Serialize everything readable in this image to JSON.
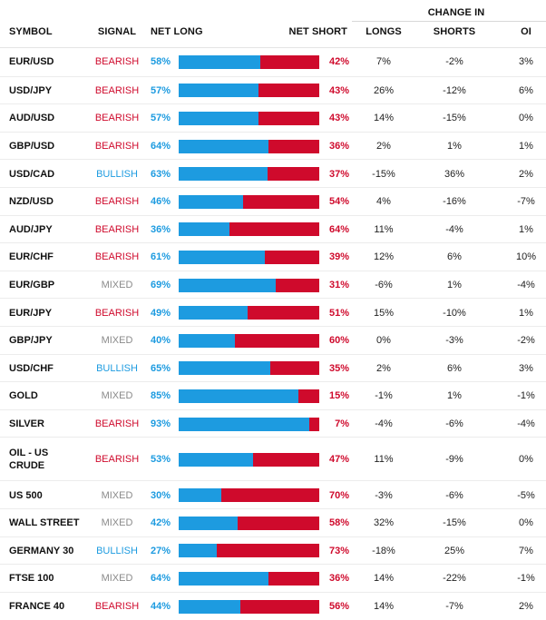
{
  "header": {
    "symbol": "SYMBOL",
    "signal": "SIGNAL",
    "net_long": "NET LONG",
    "net_short": "NET SHORT",
    "change_in": "CHANGE IN",
    "longs": "LONGS",
    "shorts": "SHORTS",
    "oi": "OI"
  },
  "colors": {
    "long": "#1d9be0",
    "short": "#cf0a2c",
    "mixed": "#8a8a8a"
  },
  "rows": [
    {
      "symbol": "EUR/USD",
      "signal": "BEARISH",
      "long": 58,
      "short": 42,
      "longs": "7%",
      "shorts": "-2%",
      "oi": "3%"
    },
    {
      "symbol": "USD/JPY",
      "signal": "BEARISH",
      "long": 57,
      "short": 43,
      "longs": "26%",
      "shorts": "-12%",
      "oi": "6%"
    },
    {
      "symbol": "AUD/USD",
      "signal": "BEARISH",
      "long": 57,
      "short": 43,
      "longs": "14%",
      "shorts": "-15%",
      "oi": "0%"
    },
    {
      "symbol": "GBP/USD",
      "signal": "BEARISH",
      "long": 64,
      "short": 36,
      "longs": "2%",
      "shorts": "1%",
      "oi": "1%"
    },
    {
      "symbol": "USD/CAD",
      "signal": "BULLISH",
      "long": 63,
      "short": 37,
      "longs": "-15%",
      "shorts": "36%",
      "oi": "2%"
    },
    {
      "symbol": "NZD/USD",
      "signal": "BEARISH",
      "long": 46,
      "short": 54,
      "longs": "4%",
      "shorts": "-16%",
      "oi": "-7%"
    },
    {
      "symbol": "AUD/JPY",
      "signal": "BEARISH",
      "long": 36,
      "short": 64,
      "longs": "11%",
      "shorts": "-4%",
      "oi": "1%"
    },
    {
      "symbol": "EUR/CHF",
      "signal": "BEARISH",
      "long": 61,
      "short": 39,
      "longs": "12%",
      "shorts": "6%",
      "oi": "10%"
    },
    {
      "symbol": "EUR/GBP",
      "signal": "MIXED",
      "long": 69,
      "short": 31,
      "longs": "-6%",
      "shorts": "1%",
      "oi": "-4%"
    },
    {
      "symbol": "EUR/JPY",
      "signal": "BEARISH",
      "long": 49,
      "short": 51,
      "longs": "15%",
      "shorts": "-10%",
      "oi": "1%"
    },
    {
      "symbol": "GBP/JPY",
      "signal": "MIXED",
      "long": 40,
      "short": 60,
      "longs": "0%",
      "shorts": "-3%",
      "oi": "-2%"
    },
    {
      "symbol": "USD/CHF",
      "signal": "BULLISH",
      "long": 65,
      "short": 35,
      "longs": "2%",
      "shorts": "6%",
      "oi": "3%"
    },
    {
      "symbol": "GOLD",
      "signal": "MIXED",
      "long": 85,
      "short": 15,
      "longs": "-1%",
      "shorts": "1%",
      "oi": "-1%"
    },
    {
      "symbol": "SILVER",
      "signal": "BEARISH",
      "long": 93,
      "short": 7,
      "longs": "-4%",
      "shorts": "-6%",
      "oi": "-4%"
    },
    {
      "symbol": "OIL - US\nCRUDE",
      "signal": "BEARISH",
      "long": 53,
      "short": 47,
      "longs": "11%",
      "shorts": "-9%",
      "oi": "0%"
    },
    {
      "symbol": "US 500",
      "signal": "MIXED",
      "long": 30,
      "short": 70,
      "longs": "-3%",
      "shorts": "-6%",
      "oi": "-5%"
    },
    {
      "symbol": "WALL STREET",
      "signal": "MIXED",
      "long": 42,
      "short": 58,
      "longs": "32%",
      "shorts": "-15%",
      "oi": "0%"
    },
    {
      "symbol": "GERMANY 30",
      "signal": "BULLISH",
      "long": 27,
      "short": 73,
      "longs": "-18%",
      "shorts": "25%",
      "oi": "7%"
    },
    {
      "symbol": "FTSE 100",
      "signal": "MIXED",
      "long": 64,
      "short": 36,
      "longs": "14%",
      "shorts": "-22%",
      "oi": "-1%"
    },
    {
      "symbol": "FRANCE 40",
      "signal": "BEARISH",
      "long": 44,
      "short": 56,
      "longs": "14%",
      "shorts": "-7%",
      "oi": "2%"
    }
  ]
}
